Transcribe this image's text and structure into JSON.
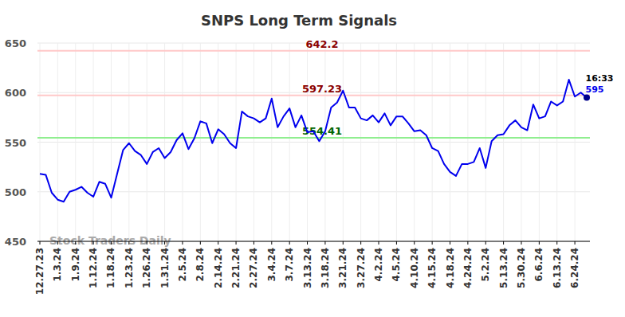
{
  "chart_data": {
    "type": "line",
    "title": "SNPS Long Term Signals",
    "categories": [
      "12.27.23",
      null,
      null,
      "1.3.24",
      null,
      null,
      "1.9.24",
      null,
      null,
      "1.12.24",
      null,
      null,
      "1.18.24",
      null,
      null,
      "1.23.24",
      null,
      null,
      "1.26.24",
      null,
      null,
      "1.31.24",
      null,
      null,
      "2.5.24",
      null,
      null,
      "2.8.24",
      null,
      null,
      "2.14.24",
      null,
      null,
      "2.21.24",
      null,
      null,
      "2.27.24",
      null,
      null,
      "3.4.24",
      null,
      null,
      "3.7.24",
      null,
      null,
      "3.13.24",
      null,
      null,
      "3.18.24",
      null,
      null,
      "3.21.24",
      null,
      null,
      "3.27.24",
      null,
      null,
      "4.2.24",
      null,
      null,
      "4.5.24",
      null,
      null,
      "4.10.24",
      null,
      null,
      "4.15.24",
      null,
      null,
      "4.18.24",
      null,
      null,
      "4.24.24",
      null,
      null,
      "5.2.24",
      null,
      null,
      "5.13.24",
      null,
      null,
      "5.30.24",
      null,
      null,
      "6.6.24",
      null,
      null,
      "6.13.24",
      null,
      null,
      "6.24.24",
      null,
      null
    ],
    "series": [
      {
        "name": "SNPS",
        "color": "#0000ee",
        "values": [
          518,
          517,
          499,
          492,
          490,
          500,
          502,
          505,
          499,
          495,
          510,
          508,
          494,
          518,
          542,
          549,
          541,
          537,
          528,
          540,
          544,
          534,
          540,
          552,
          559,
          543,
          554,
          571,
          569,
          549,
          563,
          558,
          549,
          544,
          581,
          576,
          574,
          570,
          574,
          594,
          565,
          576,
          584,
          565,
          577,
          560,
          561,
          551,
          561,
          585,
          590,
          602,
          585,
          585,
          574,
          572,
          577,
          570,
          579,
          567,
          576,
          576,
          569,
          561,
          562,
          557,
          544,
          541,
          528,
          520,
          516,
          528,
          528,
          530,
          544,
          524,
          551,
          557,
          558,
          567,
          572,
          565,
          562,
          588,
          574,
          576,
          591,
          587,
          591,
          613,
          596,
          600,
          595
        ]
      }
    ],
    "ylim": [
      450,
      650
    ],
    "yticks": [
      450,
      500,
      550,
      600,
      650
    ],
    "grid": true,
    "reference_lines": [
      {
        "value": 642.2,
        "label": "642.2",
        "color": "#8b0000"
      },
      {
        "value": 597.23,
        "label": "597.23",
        "color": "#8b0000"
      },
      {
        "value": 554.41,
        "label": "554.41",
        "color": "#006400"
      }
    ],
    "annotations": [
      "16:33",
      "595",
      "Stock Traders Daily"
    ]
  }
}
